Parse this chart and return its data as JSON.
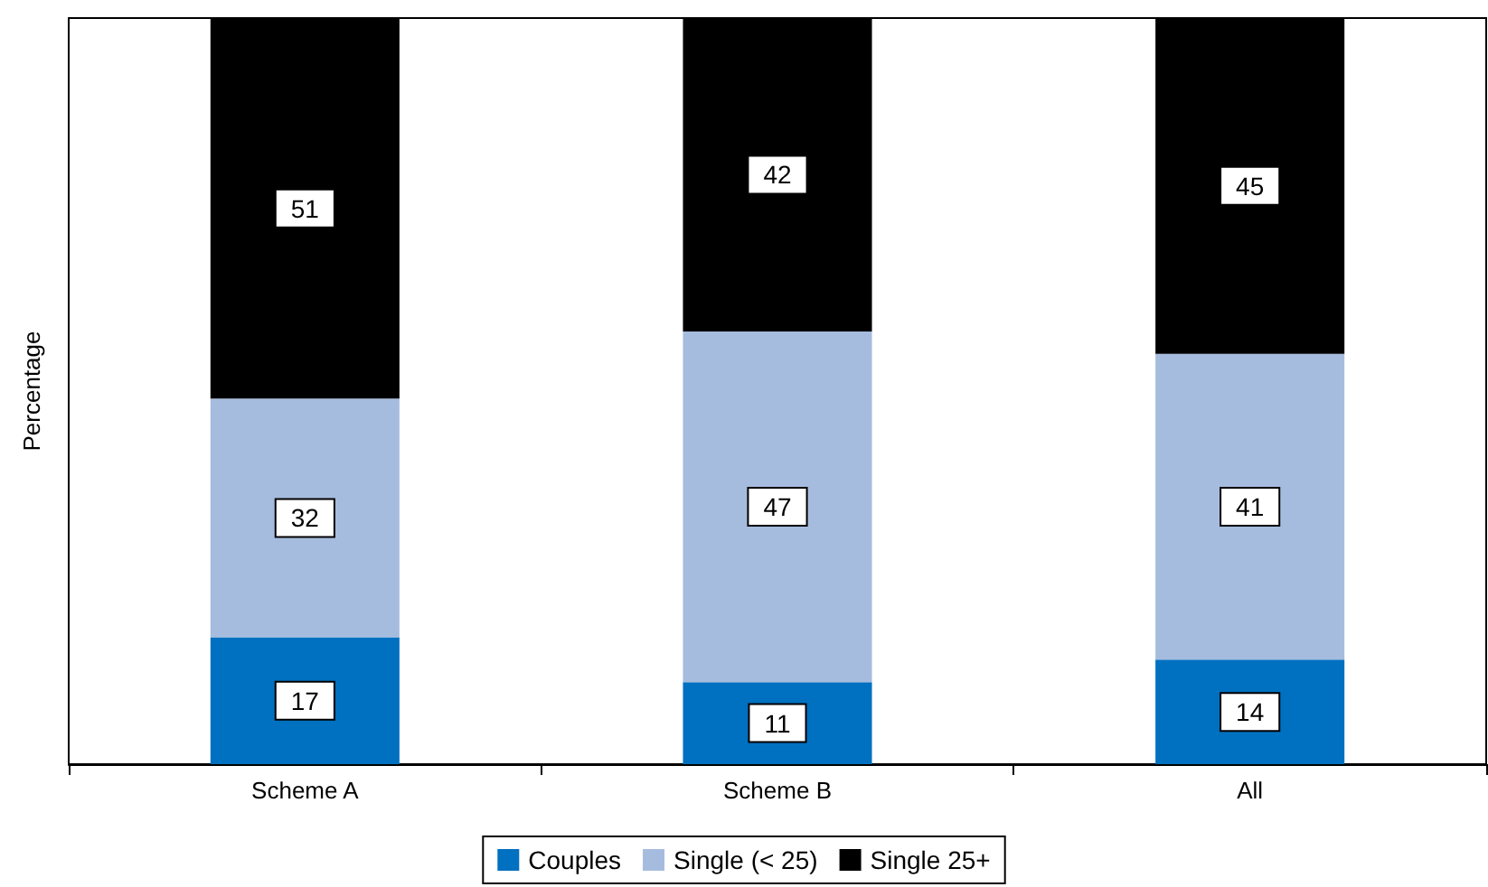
{
  "chart_data": {
    "type": "bar",
    "stacked": true,
    "ylabel": "Percentage",
    "categories": [
      "Scheme A",
      "Scheme B",
      "All"
    ],
    "series": [
      {
        "name": "Couples",
        "color": "#0070c0",
        "values": [
          17,
          11,
          14
        ]
      },
      {
        "name": "Single (< 25)",
        "color": "#a6bcde",
        "values": [
          32,
          47,
          41
        ]
      },
      {
        "name": "Single 25+",
        "color": "#000000",
        "values": [
          51,
          42,
          45
        ]
      }
    ],
    "ylim": [
      0,
      100
    ],
    "data_labels": true,
    "grid": false,
    "legend": "bottom"
  }
}
